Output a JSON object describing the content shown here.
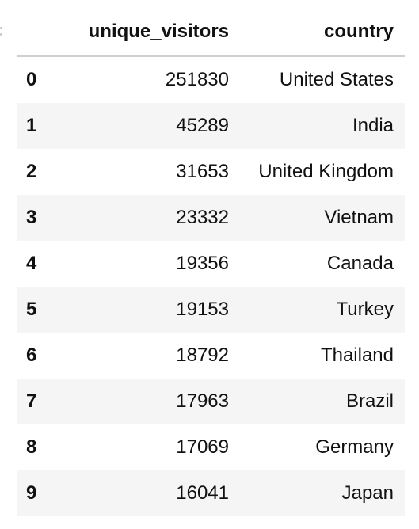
{
  "table": {
    "columns": {
      "index": "",
      "unique_visitors": "unique_visitors",
      "country": "country"
    },
    "rows": [
      {
        "index": "0",
        "unique_visitors": "251830",
        "country": "United States"
      },
      {
        "index": "1",
        "unique_visitors": "45289",
        "country": "India"
      },
      {
        "index": "2",
        "unique_visitors": "31653",
        "country": "United Kingdom"
      },
      {
        "index": "3",
        "unique_visitors": "23332",
        "country": "Vietnam"
      },
      {
        "index": "4",
        "unique_visitors": "19356",
        "country": "Canada"
      },
      {
        "index": "5",
        "unique_visitors": "19153",
        "country": "Turkey"
      },
      {
        "index": "6",
        "unique_visitors": "18792",
        "country": "Thailand"
      },
      {
        "index": "7",
        "unique_visitors": "17963",
        "country": "Brazil"
      },
      {
        "index": "8",
        "unique_visitors": "17069",
        "country": "Germany"
      },
      {
        "index": "9",
        "unique_visitors": "16041",
        "country": "Japan"
      }
    ]
  },
  "colors": {
    "header_border": "#cfcfcf",
    "row_stripe": "#f5f5f5",
    "text": "#111111"
  }
}
